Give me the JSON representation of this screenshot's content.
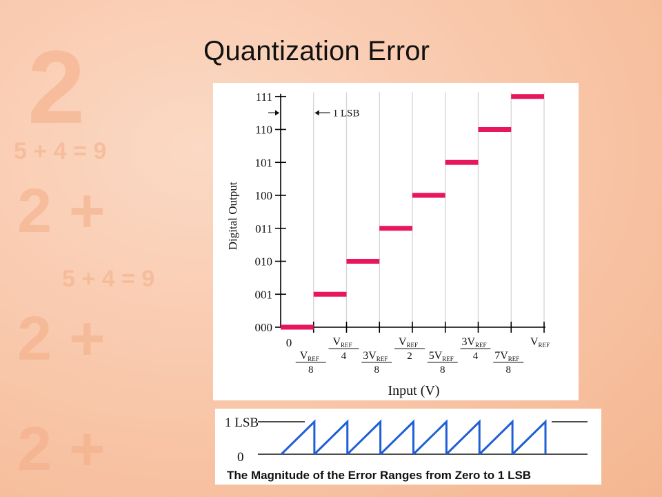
{
  "slide": {
    "title": "Quantization Error"
  },
  "colors": {
    "step": "#e8175d",
    "sawtooth": "#1f5fd6",
    "axis": "#000000"
  },
  "chart_data": {
    "type": "line",
    "title": "",
    "xlabel": "Input (V)",
    "ylabel": "Digital Output",
    "x_tick_labels": [
      {
        "pos": 0,
        "num": "0",
        "den": ""
      },
      {
        "pos": 1,
        "num": "V",
        "sub": "REF",
        "den": "8"
      },
      {
        "pos": 2,
        "num": "V",
        "sub": "REF",
        "den": "4"
      },
      {
        "pos": 3,
        "num": "3V",
        "sub": "REF",
        "den": "8"
      },
      {
        "pos": 4,
        "num": "V",
        "sub": "REF",
        "den": "2"
      },
      {
        "pos": 5,
        "num": "5V",
        "sub": "REF",
        "den": "8"
      },
      {
        "pos": 6,
        "num": "3V",
        "sub": "REF",
        "den": "4"
      },
      {
        "pos": 7,
        "num": "7V",
        "sub": "REF",
        "den": "8"
      },
      {
        "pos": 8,
        "num": "V",
        "sub": "REF",
        "den": ""
      }
    ],
    "y_tick_labels": [
      "000",
      "001",
      "010",
      "011",
      "100",
      "101",
      "110",
      "111"
    ],
    "steps": [
      {
        "x_start": 0,
        "x_end": 1,
        "code": "000"
      },
      {
        "x_start": 1,
        "x_end": 2,
        "code": "001"
      },
      {
        "x_start": 2,
        "x_end": 3,
        "code": "010"
      },
      {
        "x_start": 3,
        "x_end": 4,
        "code": "011"
      },
      {
        "x_start": 4,
        "x_end": 5,
        "code": "100"
      },
      {
        "x_start": 5,
        "x_end": 6,
        "code": "101"
      },
      {
        "x_start": 6,
        "x_end": 7,
        "code": "110"
      },
      {
        "x_start": 7,
        "x_end": 8,
        "code": "111"
      }
    ],
    "annotation": "1 LSB",
    "grid": true
  },
  "error_plot": {
    "caption": "The Magnitude of the Error Ranges from Zero to 1 LSB",
    "y_labels": [
      "1 LSB",
      "0"
    ],
    "teeth": 8
  }
}
